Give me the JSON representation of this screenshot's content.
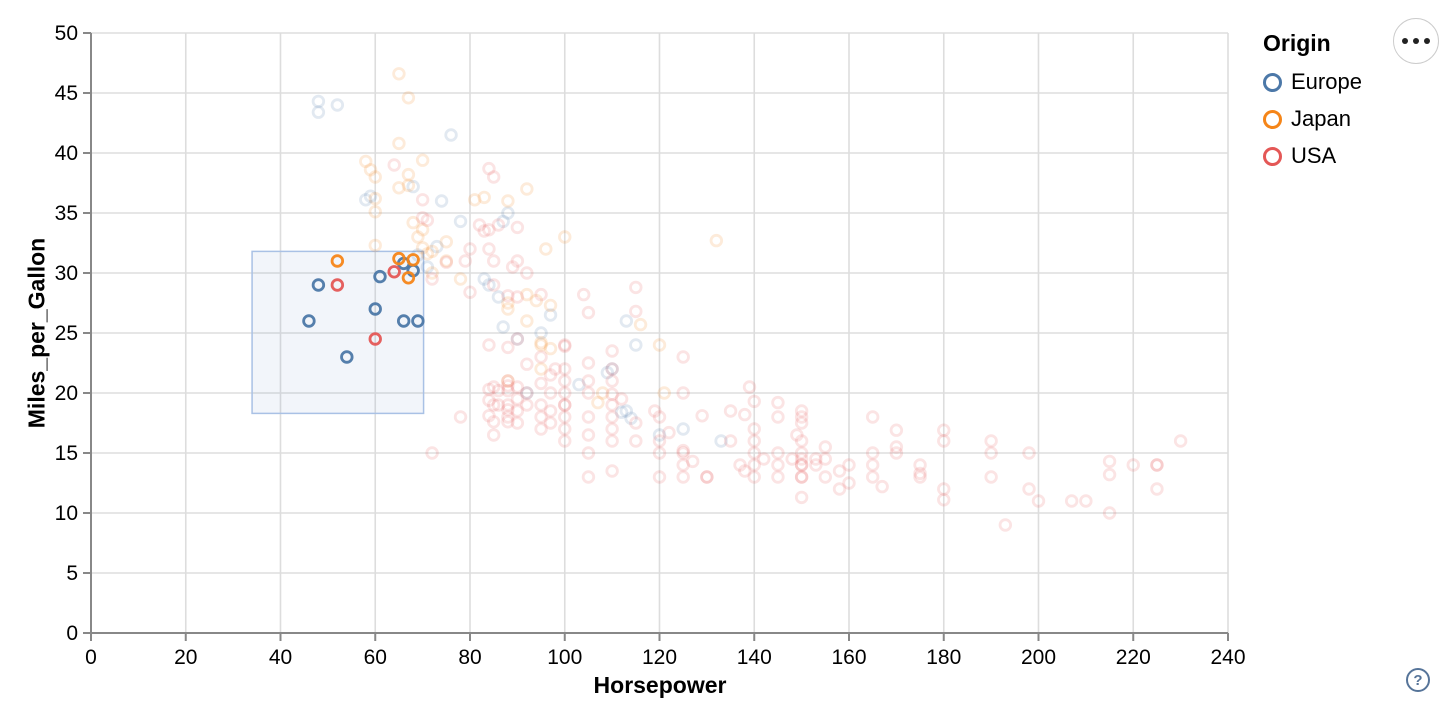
{
  "controls": {
    "menu_icon": "ellipsis-icon",
    "help_label": "?"
  },
  "chart_data": {
    "type": "scatter",
    "title": "",
    "xlabel": "Horsepower",
    "ylabel": "Miles_per_Gallon",
    "x_domain": [
      0,
      240
    ],
    "y_domain": [
      0,
      50
    ],
    "x_ticks": [
      0,
      20,
      40,
      60,
      80,
      100,
      120,
      140,
      160,
      180,
      200,
      220,
      240
    ],
    "y_ticks": [
      0,
      5,
      10,
      15,
      20,
      25,
      30,
      35,
      40,
      45,
      50
    ],
    "grid": true,
    "legend": {
      "title": "Origin",
      "position": "top-right",
      "entries": [
        {
          "label": "Europe",
          "color": "#4c78a8"
        },
        {
          "label": "Japan",
          "color": "#f58518"
        },
        {
          "label": "USA",
          "color": "#e45756"
        }
      ]
    },
    "brush_selection": {
      "x": [
        34,
        70.2
      ],
      "y": [
        18.3,
        31.8
      ],
      "fill": "#6e93c8",
      "stroke": "#a9c1e5"
    },
    "series": [
      {
        "name": "Europe",
        "color": "#4c78a8",
        "selected": [
          [
            48,
            29
          ],
          [
            46,
            26
          ],
          [
            60,
            27
          ],
          [
            54,
            23
          ],
          [
            61,
            29.7
          ],
          [
            66,
            30.8
          ],
          [
            68,
            30.2
          ],
          [
            66,
            26
          ],
          [
            69,
            26
          ]
        ],
        "unselected": [
          [
            48,
            44.3
          ],
          [
            52,
            44
          ],
          [
            48,
            43.4
          ],
          [
            76,
            41.5
          ],
          [
            68,
            37.2
          ],
          [
            58,
            36.1
          ],
          [
            59,
            36.4
          ],
          [
            74,
            36
          ],
          [
            78,
            34.3
          ],
          [
            88,
            35
          ],
          [
            87,
            34.3
          ],
          [
            73,
            32.2
          ],
          [
            69,
            31.5
          ],
          [
            71,
            30.5
          ],
          [
            83,
            29.5
          ],
          [
            84,
            29
          ],
          [
            86,
            28
          ],
          [
            87,
            25.5
          ],
          [
            90,
            24.5
          ],
          [
            95,
            25
          ],
          [
            97,
            26.5
          ],
          [
            113,
            26
          ],
          [
            115,
            24
          ],
          [
            110,
            22
          ],
          [
            109,
            21.7
          ],
          [
            103,
            20.7
          ],
          [
            92,
            20
          ],
          [
            112,
            18.4
          ],
          [
            113,
            18.5
          ],
          [
            114,
            17.9
          ],
          [
            120,
            16.5
          ],
          [
            125,
            17
          ],
          [
            133,
            16
          ]
        ]
      },
      {
        "name": "Japan",
        "color": "#f58518",
        "selected": [
          [
            52,
            31
          ],
          [
            65,
            31.2
          ],
          [
            68,
            31.1
          ],
          [
            67,
            29.6
          ]
        ],
        "unselected": [
          [
            65,
            46.6
          ],
          [
            67,
            44.6
          ],
          [
            65,
            40.8
          ],
          [
            70,
            39.4
          ],
          [
            58,
            39.3
          ],
          [
            59,
            38.6
          ],
          [
            60,
            38
          ],
          [
            67,
            38.2
          ],
          [
            67,
            37.3
          ],
          [
            65,
            37.1
          ],
          [
            92,
            37
          ],
          [
            60,
            36.2
          ],
          [
            81,
            36.1
          ],
          [
            83,
            36.3
          ],
          [
            88,
            36
          ],
          [
            60,
            35.1
          ],
          [
            68,
            34.2
          ],
          [
            70,
            33.6
          ],
          [
            69,
            33
          ],
          [
            100,
            33
          ],
          [
            132,
            32.7
          ],
          [
            75,
            32.6
          ],
          [
            70,
            32.1
          ],
          [
            60,
            32.3
          ],
          [
            96,
            32
          ],
          [
            72,
            31.8
          ],
          [
            71,
            31.6
          ],
          [
            75,
            31
          ],
          [
            72,
            30
          ],
          [
            78,
            29.5
          ],
          [
            92,
            28.2
          ],
          [
            94,
            27.7
          ],
          [
            88,
            27.5
          ],
          [
            97,
            27.3
          ],
          [
            88,
            27
          ],
          [
            92,
            26
          ],
          [
            116,
            25.7
          ],
          [
            95,
            24.2
          ],
          [
            95,
            24
          ],
          [
            120,
            24
          ],
          [
            97,
            23.7
          ],
          [
            95,
            22
          ],
          [
            88,
            21
          ],
          [
            121,
            20
          ],
          [
            108,
            20
          ],
          [
            107,
            19.2
          ]
        ]
      },
      {
        "name": "USA",
        "color": "#e45756",
        "selected": [
          [
            52,
            29
          ],
          [
            64,
            30.1
          ],
          [
            60,
            24.5
          ]
        ],
        "unselected": [
          [
            64,
            39
          ],
          [
            85,
            38
          ],
          [
            84,
            38.7
          ],
          [
            90,
            33.8
          ],
          [
            83,
            33.5
          ],
          [
            86,
            34
          ],
          [
            82,
            34
          ],
          [
            84,
            33.6
          ],
          [
            70,
            36.1
          ],
          [
            70,
            34.6
          ],
          [
            71,
            34.4
          ],
          [
            80,
            32
          ],
          [
            84,
            32
          ],
          [
            85,
            31
          ],
          [
            89,
            30.5
          ],
          [
            90,
            31
          ],
          [
            92,
            30
          ],
          [
            75,
            30.9
          ],
          [
            79,
            31
          ],
          [
            72,
            29.5
          ],
          [
            80,
            28.4
          ],
          [
            85,
            29
          ],
          [
            88,
            28.1
          ],
          [
            90,
            28
          ],
          [
            95,
            28.2
          ],
          [
            104,
            28.2
          ],
          [
            105,
            26.7
          ],
          [
            115,
            28.8
          ],
          [
            115,
            26.8
          ],
          [
            125,
            23
          ],
          [
            84,
            24
          ],
          [
            88,
            23.8
          ],
          [
            90,
            24.5
          ],
          [
            95,
            23
          ],
          [
            100,
            24
          ],
          [
            105,
            22.5
          ],
          [
            98,
            22
          ],
          [
            92,
            22.4
          ],
          [
            100,
            23.9
          ],
          [
            110,
            23.5
          ],
          [
            84,
            20.3
          ],
          [
            84,
            19.4
          ],
          [
            84,
            18.1
          ],
          [
            85,
            20.5
          ],
          [
            85,
            19
          ],
          [
            85,
            17.6
          ],
          [
            85,
            16.5
          ],
          [
            86,
            20.2
          ],
          [
            86,
            19
          ],
          [
            88,
            21
          ],
          [
            88,
            20.6
          ],
          [
            88,
            20.2
          ],
          [
            88,
            19
          ],
          [
            88,
            18.6
          ],
          [
            88,
            18
          ],
          [
            88,
            17.6
          ],
          [
            90,
            20.5
          ],
          [
            90,
            19.5
          ],
          [
            90,
            18.5
          ],
          [
            90,
            17.5
          ],
          [
            92,
            20
          ],
          [
            92,
            19
          ],
          [
            95,
            20.8
          ],
          [
            95,
            19
          ],
          [
            95,
            18
          ],
          [
            95,
            17
          ],
          [
            97,
            21.5
          ],
          [
            97,
            20
          ],
          [
            97,
            18.5
          ],
          [
            97,
            17.5
          ],
          [
            100,
            22
          ],
          [
            100,
            21
          ],
          [
            100,
            20
          ],
          [
            100,
            19
          ],
          [
            100,
            19
          ],
          [
            100,
            18
          ],
          [
            100,
            17
          ],
          [
            100,
            16
          ],
          [
            105,
            21
          ],
          [
            105,
            20
          ],
          [
            105,
            18
          ],
          [
            105,
            16.5
          ],
          [
            105,
            15
          ],
          [
            105,
            13
          ],
          [
            110,
            22
          ],
          [
            110,
            21
          ],
          [
            110,
            19.9
          ],
          [
            110,
            19
          ],
          [
            110,
            18
          ],
          [
            110,
            17
          ],
          [
            110,
            16
          ],
          [
            110,
            13.5
          ],
          [
            112,
            19.5
          ],
          [
            115,
            17.5
          ],
          [
            115,
            16
          ],
          [
            72,
            15
          ],
          [
            78,
            18
          ],
          [
            120,
            18
          ],
          [
            120,
            16
          ],
          [
            120,
            15
          ],
          [
            119,
            18.5
          ],
          [
            122,
            16.7
          ],
          [
            125,
            15.2
          ],
          [
            127,
            14.3
          ],
          [
            120,
            13
          ],
          [
            130,
            13
          ],
          [
            130,
            13
          ],
          [
            125,
            20
          ],
          [
            125,
            15
          ],
          [
            125,
            14
          ],
          [
            125,
            13
          ],
          [
            129,
            18.1
          ],
          [
            135,
            18.5
          ],
          [
            135,
            16
          ],
          [
            137,
            14
          ],
          [
            138,
            18.2
          ],
          [
            138,
            13.5
          ],
          [
            139,
            20.5
          ],
          [
            140,
            19.3
          ],
          [
            140,
            17
          ],
          [
            140,
            16
          ],
          [
            140,
            15
          ],
          [
            140,
            14
          ],
          [
            140,
            13
          ],
          [
            142,
            14.5
          ],
          [
            145,
            19.2
          ],
          [
            145,
            18
          ],
          [
            145,
            15
          ],
          [
            145,
            14
          ],
          [
            145,
            13
          ],
          [
            148,
            14.5
          ],
          [
            149,
            16.5
          ],
          [
            150,
            18.5
          ],
          [
            150,
            18
          ],
          [
            150,
            17.5
          ],
          [
            150,
            16
          ],
          [
            150,
            15
          ],
          [
            150,
            14.5
          ],
          [
            150,
            14
          ],
          [
            150,
            14
          ],
          [
            150,
            13
          ],
          [
            150,
            13
          ],
          [
            150,
            11.3
          ],
          [
            153,
            14.5
          ],
          [
            153,
            14
          ],
          [
            155,
            15.5
          ],
          [
            155,
            14.5
          ],
          [
            155,
            13
          ],
          [
            158,
            13.5
          ],
          [
            158,
            12
          ],
          [
            160,
            14
          ],
          [
            160,
            12.5
          ],
          [
            165,
            18
          ],
          [
            165,
            15
          ],
          [
            165,
            14
          ],
          [
            165,
            13
          ],
          [
            167,
            12.2
          ],
          [
            170,
            16.9
          ],
          [
            170,
            15.5
          ],
          [
            170,
            15
          ],
          [
            175,
            14
          ],
          [
            175,
            13.3
          ],
          [
            175,
            13
          ],
          [
            180,
            16.9
          ],
          [
            180,
            16
          ],
          [
            180,
            12
          ],
          [
            180,
            11.1
          ],
          [
            190,
            16
          ],
          [
            190,
            15
          ],
          [
            190,
            13
          ],
          [
            193,
            9
          ],
          [
            198,
            15
          ],
          [
            198,
            12
          ],
          [
            200,
            11
          ],
          [
            207,
            11
          ],
          [
            210,
            11
          ],
          [
            215,
            14.3
          ],
          [
            215,
            13.2
          ],
          [
            215,
            10
          ],
          [
            220,
            14
          ],
          [
            225,
            14
          ],
          [
            225,
            14
          ],
          [
            225,
            12
          ],
          [
            230,
            16
          ]
        ]
      }
    ]
  }
}
